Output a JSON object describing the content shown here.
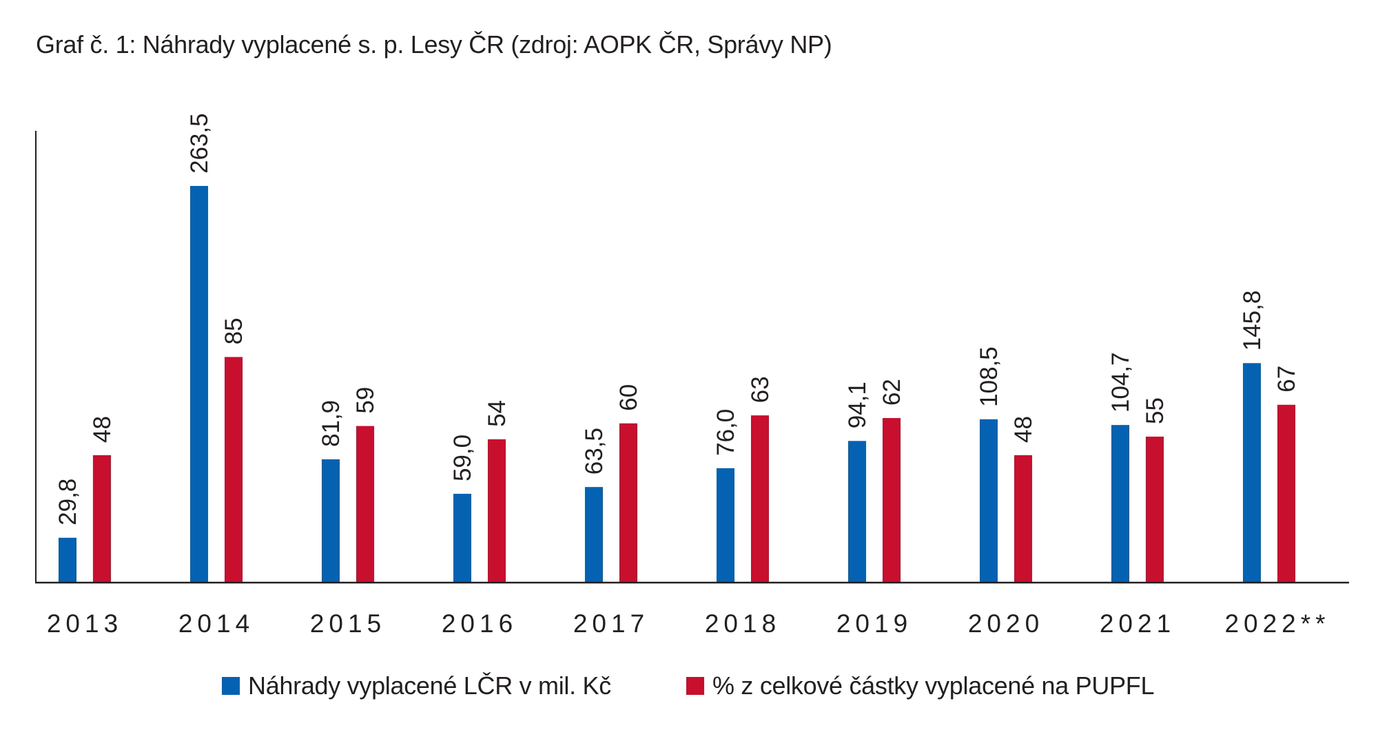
{
  "colors": {
    "series1": "#0562b2",
    "series2": "#c8102e",
    "axis": "#231f20",
    "text": "#231f20"
  },
  "chart_data": {
    "type": "bar",
    "title": "Graf č. 1: Náhrady vyplacené s. p. Lesy ČR  (zdroj: AOPK ČR, Správy NP)",
    "categories": [
      "2013",
      "2014",
      "2015",
      "2016",
      "2017",
      "2018",
      "2019",
      "2020",
      "2021",
      "2022**"
    ],
    "series": [
      {
        "name": "Náhrady vyplacené LČR v mil. Kč",
        "color": "#0562b2",
        "values": [
          29.8,
          263.5,
          81.9,
          59.0,
          63.5,
          76.0,
          94.1,
          108.5,
          104.7,
          145.8
        ],
        "labels": [
          "29,8",
          "263,5",
          "81,9",
          "59,0",
          "63,5",
          "76,0",
          "94,1",
          "108,5",
          "104,7",
          "145,8"
        ]
      },
      {
        "name": "% z celkové částky vyplacené na PUPFL",
        "color": "#c8102e",
        "values": [
          48,
          85,
          59,
          54,
          60,
          63,
          62,
          48,
          55,
          67
        ],
        "labels": [
          "48",
          "85",
          "59",
          "54",
          "60",
          "63",
          "62",
          "48",
          "55",
          "67"
        ]
      }
    ],
    "legend_position": "bottom",
    "grid": false
  }
}
